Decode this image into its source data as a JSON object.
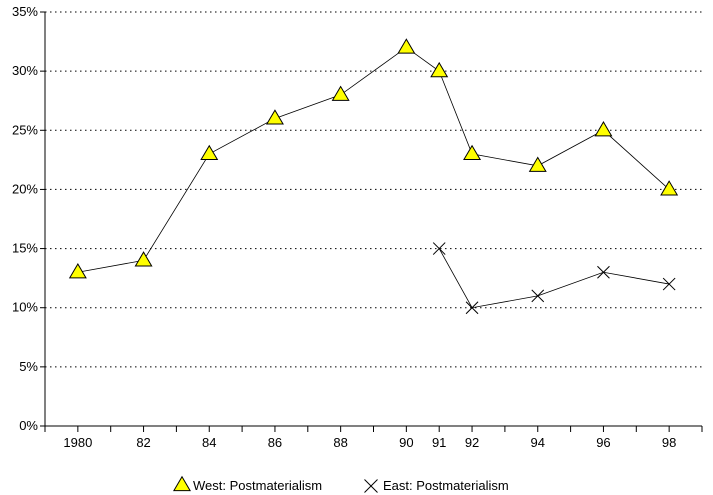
{
  "chart_data": {
    "type": "line",
    "x_categories": [
      "1980",
      "82",
      "84",
      "86",
      "88",
      "90",
      "91",
      "92",
      "94",
      "96",
      "98"
    ],
    "x_positions": [
      1980,
      1982,
      1984,
      1986,
      1988,
      1990,
      1991,
      1992,
      1994,
      1996,
      1998
    ],
    "y_ticks": [
      "0%",
      "5%",
      "10%",
      "15%",
      "20%",
      "25%",
      "30%",
      "35%"
    ],
    "ylim": [
      0,
      35
    ],
    "grid": "horizontal dotted",
    "legend_position": "bottom",
    "series": [
      {
        "name": "West: Postmaterialism",
        "marker": "triangle",
        "color": "#FFFF00",
        "line_color": "#000000",
        "points": [
          {
            "x": 1980,
            "y": 13
          },
          {
            "x": 1982,
            "y": 14
          },
          {
            "x": 1984,
            "y": 23
          },
          {
            "x": 1986,
            "y": 26
          },
          {
            "x": 1988,
            "y": 28
          },
          {
            "x": 1990,
            "y": 32
          },
          {
            "x": 1991,
            "y": 30
          },
          {
            "x": 1992,
            "y": 23
          },
          {
            "x": 1994,
            "y": 22
          },
          {
            "x": 1996,
            "y": 25
          },
          {
            "x": 1998,
            "y": 20
          }
        ]
      },
      {
        "name": "East: Postmaterialism",
        "marker": "x",
        "color": "#000000",
        "line_color": "#000000",
        "points": [
          {
            "x": 1991,
            "y": 15
          },
          {
            "x": 1992,
            "y": 10
          },
          {
            "x": 1994,
            "y": 11
          },
          {
            "x": 1996,
            "y": 13
          },
          {
            "x": 1998,
            "y": 12
          }
        ]
      }
    ]
  }
}
